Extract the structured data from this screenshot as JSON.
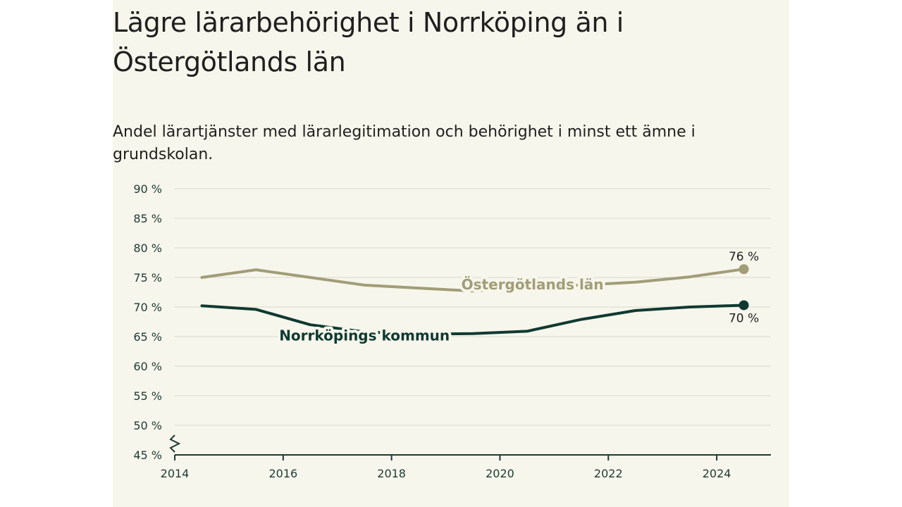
{
  "title": "Lägre lärarbehörighet i Norrköping än i Östergötlands län",
  "subtitle": "Andel lärartjänster med lärarlegitimation och behörighet i minst ett ämne i grundskolan.",
  "colors": {
    "background": "#f7f6ec",
    "lan": "#a19d77",
    "kommun": "#0f3a31",
    "grid": "#d9d8cf",
    "axis": "#1d3a33"
  },
  "chart_data": {
    "type": "line",
    "title": "Lägre lärarbehörighet i Norrköping än i Östergötlands län",
    "subtitle": "Andel lärartjänster med lärarlegitimation och behörighet i minst ett ämne i grundskolan.",
    "xlabel": "",
    "ylabel": "",
    "xlim": [
      2014,
      2025
    ],
    "ylim": [
      45,
      90
    ],
    "y_axis_break": true,
    "grid": true,
    "x_ticks": [
      "2014",
      "2016",
      "2018",
      "2020",
      "2022",
      "2024"
    ],
    "y_ticks": [
      "45 %",
      "50 %",
      "55 %",
      "60 %",
      "65 %",
      "70 %",
      "75 %",
      "80 %",
      "85 %",
      "90 %"
    ],
    "x": [
      2014.5,
      2015.5,
      2016.5,
      2017.5,
      2018.5,
      2019.5,
      2020.5,
      2021.5,
      2022.5,
      2023.5,
      2024.5
    ],
    "series": [
      {
        "name": "Östergötlands län",
        "color": "#a19d77",
        "values": [
          75.0,
          76.3,
          75.0,
          73.7,
          73.2,
          72.7,
          73.3,
          73.7,
          74.2,
          75.1,
          76.4
        ],
        "end_label": "76 %"
      },
      {
        "name": "Norrköpings kommun",
        "color": "#0f3a31",
        "values": [
          70.2,
          69.6,
          67.0,
          65.8,
          65.4,
          65.5,
          65.9,
          67.9,
          69.4,
          70.0,
          70.3
        ],
        "end_label": "70 %"
      }
    ]
  }
}
